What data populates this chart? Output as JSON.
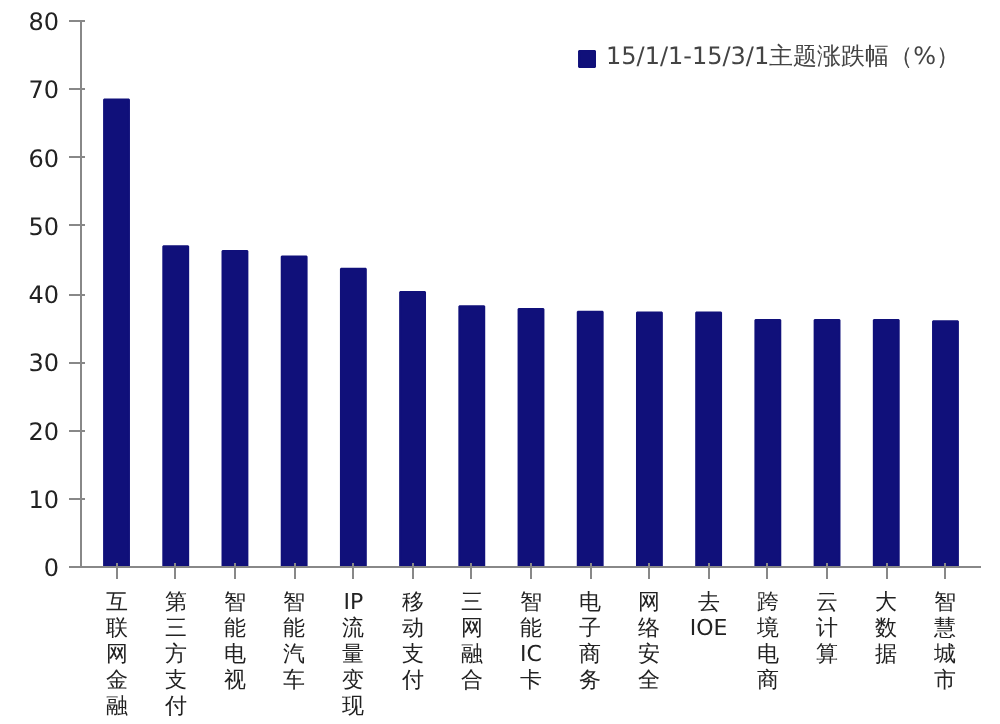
{
  "chart_data": {
    "type": "bar",
    "categories": [
      "互联网金融",
      "第三方支付",
      "智能电视",
      "智能汽车",
      "IP流量变现",
      "移动支付",
      "三网融合",
      "智能IC卡",
      "电子商务",
      "网络安全",
      "去IOE",
      "跨境电商",
      "云计算",
      "大数据",
      "智慧城市"
    ],
    "series": [
      {
        "name": "15/1/1-15/3/1主题涨跌幅（%）",
        "color": "#10107a",
        "values": [
          68.5,
          47,
          46.3,
          45.5,
          43.7,
          40.3,
          38.2,
          37.8,
          37.4,
          37.3,
          37.3,
          36.2,
          36.2,
          36.2,
          36
        ]
      }
    ],
    "ylim": [
      0,
      80
    ],
    "yticks": [
      0,
      10,
      20,
      30,
      40,
      50,
      60,
      70,
      80
    ],
    "grid": false,
    "legend": "top right"
  }
}
